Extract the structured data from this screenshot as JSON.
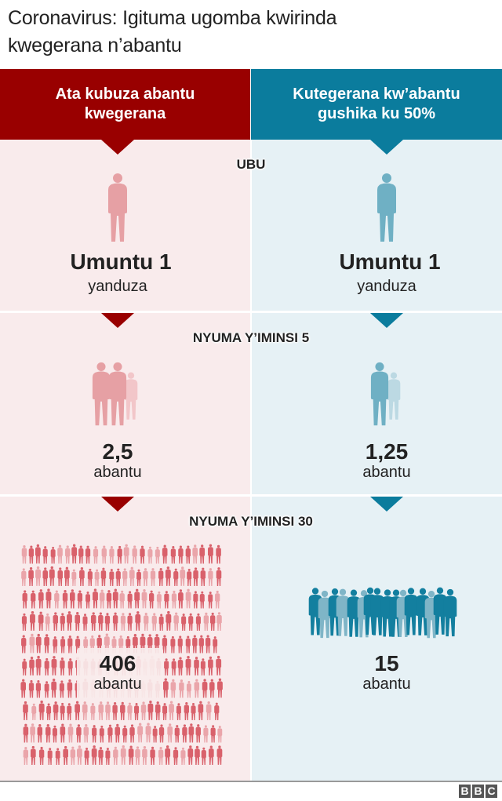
{
  "title": {
    "line1": "Coronavirus: Igituma ugomba kwirinda",
    "line2": "kwegerana n’abantu"
  },
  "colors": {
    "red": "#990000",
    "teal": "#0b7c9d",
    "red_person": "#d9616b",
    "teal_person": "#137f9f",
    "pink_bg": "#f9ebec",
    "blue_bg": "#e6f1f5"
  },
  "columns": [
    {
      "header_line1": "Ata kubuza abantu",
      "header_line2": "kwegerana"
    },
    {
      "header_line1": "Kutegerana kw’abantu",
      "header_line2": "gushika ku 50%"
    }
  ],
  "sections": [
    {
      "label": "UBU",
      "left": {
        "value": "Umuntu 1",
        "unit": "yanduza"
      },
      "right": {
        "value": "Umuntu 1",
        "unit": "yanduza"
      }
    },
    {
      "label": "NYUMA Y’IMINSI 5",
      "left": {
        "value": "2,5",
        "unit": "abantu"
      },
      "right": {
        "value": "1,25",
        "unit": "abantu"
      }
    },
    {
      "label": "NYUMA Y’IMINSI 30",
      "left": {
        "value": "406",
        "unit": "abantu"
      },
      "right": {
        "value": "15",
        "unit": "abantu"
      }
    }
  ],
  "logo": {
    "letters": [
      "B",
      "B",
      "C"
    ]
  }
}
